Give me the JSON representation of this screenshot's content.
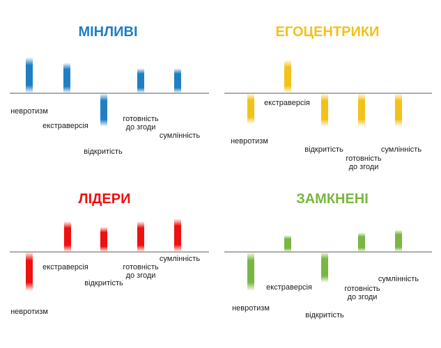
{
  "chart_data": [
    {
      "type": "bar",
      "title": "МІНЛИВІ",
      "color": "#1f7fc3",
      "categories": [
        "невротизм",
        "екстраверсія",
        "відкритість",
        "готовність до згоди",
        "сумлінність"
      ],
      "values": [
        0.65,
        0.55,
        -0.6,
        0.45,
        0.45
      ],
      "ylim": [
        -1,
        1
      ],
      "grid": false,
      "legend": "none"
    },
    {
      "type": "bar",
      "title": "ЕГОЦЕНТРИКИ",
      "color": "#f2c21b",
      "categories": [
        "невротизм",
        "екстраверсія",
        "відкритість",
        "готовність до згоди",
        "сумлінність"
      ],
      "values": [
        -0.55,
        0.6,
        -0.6,
        -0.6,
        -0.6
      ],
      "ylim": [
        -1,
        1
      ],
      "grid": false,
      "legend": "none"
    },
    {
      "type": "bar",
      "title": "ЛІДЕРИ",
      "color": "#ef1010",
      "categories": [
        "невротизм",
        "екстраверсія",
        "відкритість",
        "готовність до згоди",
        "сумлінність"
      ],
      "values": [
        -0.7,
        0.55,
        0.45,
        0.55,
        0.6
      ],
      "ylim": [
        -1,
        1
      ],
      "grid": false,
      "legend": "none"
    },
    {
      "type": "bar",
      "title": "ЗАМКНЕНІ",
      "color": "#7ab642",
      "categories": [
        "невротизм",
        "екстраверсія",
        "відкритість",
        "готовність до згоди",
        "сумлінність"
      ],
      "values": [
        -0.7,
        0.3,
        -0.55,
        0.35,
        0.4
      ],
      "ylim": [
        -1,
        1
      ],
      "grid": false,
      "legend": "none"
    }
  ]
}
